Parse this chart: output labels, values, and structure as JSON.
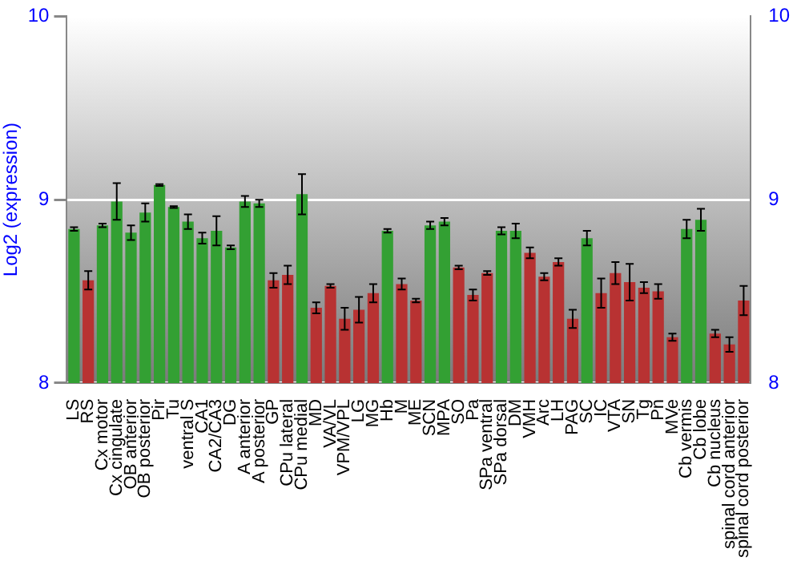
{
  "chart_data": {
    "type": "bar",
    "ylabel": "Log2 (expression)",
    "categories": [
      "LS",
      "RS",
      "Cx motor",
      "Cx cingulate",
      "OB anterior",
      "OB posterior",
      "Pir",
      "Tu",
      "ventral S",
      "CA1",
      "CA2/CA3",
      "DG",
      "A anterior",
      "A posterior",
      "GP",
      "CPu lateral",
      "CPu medial",
      "MD",
      "VA/VL",
      "VPM/VPL",
      "LG",
      "MG",
      "Hb",
      "M",
      "ME",
      "SCN",
      "MPA",
      "SO",
      "Pa",
      "SPa ventral",
      "SPa dorsal",
      "DM",
      "VMH",
      "Arc",
      "LH",
      "PAG",
      "SC",
      "IC",
      "VTA",
      "SN",
      "Tg",
      "Pn",
      "MVe",
      "Cb vermis",
      "Cb lobe",
      "Cb nucleus",
      "spinal cord anterior",
      "spinal cord posterior"
    ],
    "values": [
      8.84,
      8.56,
      8.86,
      8.99,
      8.82,
      8.93,
      9.08,
      8.96,
      8.88,
      8.79,
      8.83,
      8.74,
      8.99,
      8.98,
      8.56,
      8.59,
      9.03,
      8.41,
      8.53,
      8.35,
      8.4,
      8.49,
      8.83,
      8.54,
      8.45,
      8.86,
      8.88,
      8.63,
      8.48,
      8.6,
      8.83,
      8.83,
      8.71,
      8.58,
      8.66,
      8.35,
      8.79,
      8.49,
      8.6,
      8.55,
      8.52,
      8.5,
      8.25,
      8.84,
      8.89,
      8.27,
      8.21,
      8.45
    ],
    "errors": [
      0.01,
      0.05,
      0.01,
      0.1,
      0.04,
      0.05,
      0.005,
      0.005,
      0.04,
      0.03,
      0.08,
      0.01,
      0.03,
      0.02,
      0.04,
      0.05,
      0.11,
      0.03,
      0.01,
      0.06,
      0.07,
      0.05,
      0.01,
      0.03,
      0.01,
      0.02,
      0.02,
      0.01,
      0.03,
      0.01,
      0.02,
      0.04,
      0.03,
      0.02,
      0.02,
      0.05,
      0.04,
      0.08,
      0.06,
      0.1,
      0.03,
      0.04,
      0.02,
      0.05,
      0.06,
      0.02,
      0.04,
      0.08
    ],
    "colors": [
      "#33a033",
      "#b83232",
      "#33a033",
      "#33a033",
      "#33a033",
      "#33a033",
      "#33a033",
      "#33a033",
      "#33a033",
      "#33a033",
      "#33a033",
      "#33a033",
      "#33a033",
      "#33a033",
      "#b83232",
      "#b83232",
      "#33a033",
      "#b83232",
      "#b83232",
      "#b83232",
      "#b83232",
      "#b83232",
      "#33a033",
      "#b83232",
      "#b83232",
      "#33a033",
      "#33a033",
      "#b83232",
      "#b83232",
      "#b83232",
      "#33a033",
      "#33a033",
      "#b83232",
      "#b83232",
      "#b83232",
      "#b83232",
      "#33a033",
      "#b83232",
      "#b83232",
      "#b83232",
      "#b83232",
      "#b83232",
      "#b83232",
      "#33a033",
      "#33a033",
      "#b83232",
      "#b83232",
      "#b83232"
    ],
    "ylim": [
      8,
      10
    ],
    "yticks": [
      8,
      9,
      10
    ],
    "y2lim": [
      8,
      10
    ],
    "y2ticks": [
      8,
      9,
      10
    ],
    "grid": "y",
    "legend": false
  }
}
